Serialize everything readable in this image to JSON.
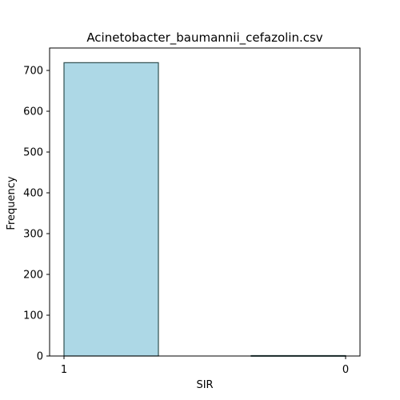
{
  "chart_data": {
    "type": "bar",
    "title": "Acinetobacter_baumannii_cefazolin.csv",
    "xlabel": "SIR",
    "ylabel": "Frequency",
    "categories": [
      "1",
      "0"
    ],
    "values": [
      719,
      1
    ],
    "ylim": [
      0,
      755
    ],
    "yticks": [
      0,
      100,
      200,
      300,
      400,
      500,
      600,
      700
    ],
    "grid": false,
    "colors": {
      "bar_fill": "#add8e6",
      "bar_edge": "#2f4f4f"
    }
  }
}
